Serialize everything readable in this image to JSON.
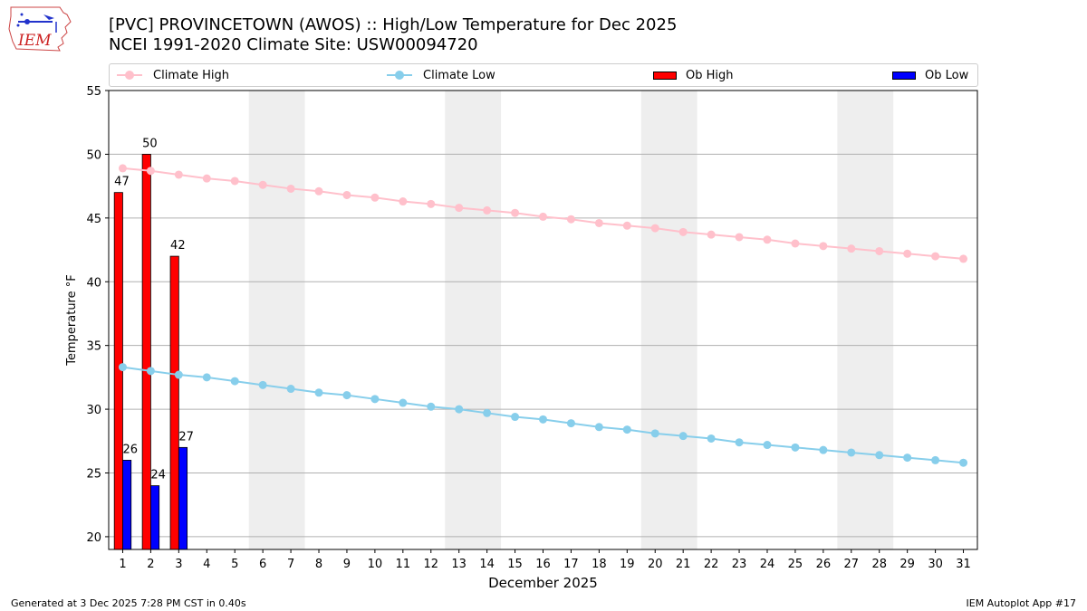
{
  "logo": {
    "text": "IEM",
    "icon": "iowa-state-outline-icon"
  },
  "title_line1": "[PVC] PROVINCETOWN (AWOS) :: High/Low Temperature for Dec 2025",
  "title_line2": "NCEI 1991-2020 Climate Site: USW00094720",
  "footer": {
    "generated": "Generated at 3 Dec 2025 7:28 PM CST in 0.40s",
    "app": "IEM Autoplot App #17"
  },
  "colors": {
    "climate_high": "#ffc0cb",
    "climate_low": "#87ceeb",
    "ob_high": "#ff0000",
    "ob_low": "#0000ff",
    "weekend_band": "#eeeeee",
    "grid": "#b0b0b0"
  },
  "chart_data": {
    "type": "bar",
    "xlabel": "December 2025",
    "ylabel": "Temperature °F",
    "ylim": [
      19,
      55
    ],
    "xlim": [
      0.5,
      31.5
    ],
    "y_ticks": [
      20,
      25,
      30,
      35,
      40,
      45,
      50,
      55
    ],
    "x": [
      1,
      2,
      3,
      4,
      5,
      6,
      7,
      8,
      9,
      10,
      11,
      12,
      13,
      14,
      15,
      16,
      17,
      18,
      19,
      20,
      21,
      22,
      23,
      24,
      25,
      26,
      27,
      28,
      29,
      30,
      31
    ],
    "x_tick_labels": [
      "1",
      "2",
      "3",
      "4",
      "5",
      "6",
      "7",
      "8",
      "9",
      "10",
      "11",
      "12",
      "13",
      "14",
      "15",
      "16",
      "17",
      "18",
      "19",
      "20",
      "21",
      "22",
      "23",
      "24",
      "25",
      "26",
      "27",
      "28",
      "29",
      "30",
      "31"
    ],
    "grid": "horizontal",
    "legend_position": "top",
    "shaded_weekends": [
      [
        6,
        7
      ],
      [
        13,
        14
      ],
      [
        20,
        21
      ],
      [
        27,
        28
      ]
    ],
    "series": [
      {
        "name": "Climate High",
        "kind": "line",
        "values": [
          48.9,
          48.7,
          48.4,
          48.1,
          47.9,
          47.6,
          47.3,
          47.1,
          46.8,
          46.6,
          46.3,
          46.1,
          45.8,
          45.6,
          45.4,
          45.1,
          44.9,
          44.6,
          44.4,
          44.2,
          43.9,
          43.7,
          43.5,
          43.3,
          43.0,
          42.8,
          42.6,
          42.4,
          42.2,
          42.0,
          41.8
        ]
      },
      {
        "name": "Climate Low",
        "kind": "line",
        "values": [
          33.3,
          33.0,
          32.7,
          32.5,
          32.2,
          31.9,
          31.6,
          31.3,
          31.1,
          30.8,
          30.5,
          30.2,
          30.0,
          29.7,
          29.4,
          29.2,
          28.9,
          28.6,
          28.4,
          28.1,
          27.9,
          27.7,
          27.4,
          27.2,
          27.0,
          26.8,
          26.6,
          26.4,
          26.2,
          26.0,
          25.8
        ]
      },
      {
        "name": "Ob High",
        "kind": "bar",
        "x": [
          1,
          2,
          3
        ],
        "values": [
          47,
          50,
          42
        ],
        "labels": [
          "47",
          "50",
          "42"
        ]
      },
      {
        "name": "Ob Low",
        "kind": "bar",
        "x": [
          1,
          2,
          3
        ],
        "values": [
          26,
          24,
          27
        ],
        "labels": [
          "26",
          "24",
          "27"
        ]
      }
    ]
  }
}
